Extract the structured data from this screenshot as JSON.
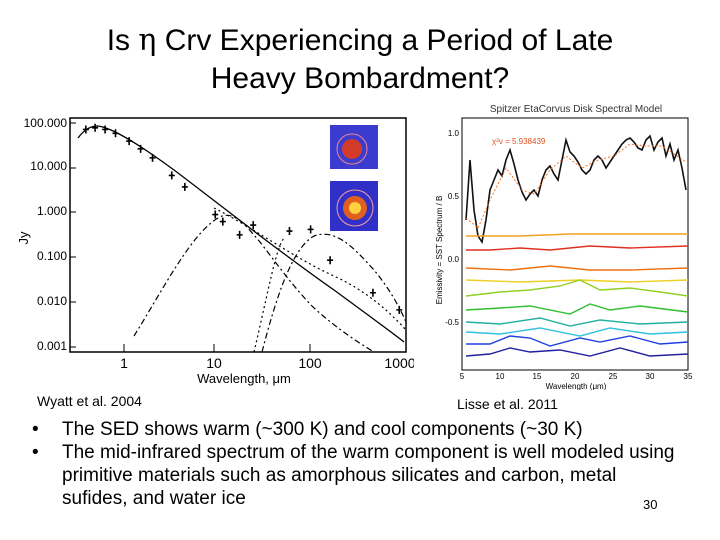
{
  "slide": {
    "title_line1_pre": "Is ",
    "title_eta": "η",
    "title_line1_post": " Crv Experiencing a Period of Late",
    "title_line2": "Heavy Bombardment?",
    "slide_number": "30"
  },
  "figures": {
    "left_caption": "Wyatt et al. 2004",
    "right_caption": "Lisse et al. 2011"
  },
  "bullets": [
    "The SED shows warm (~300 K) and cool components (~30 K)",
    "The mid-infrared spectrum of the warm component is well modeled using primitive materials such as amorphous silicates and carbon, metal sufides, and water ice"
  ],
  "chart_data": [
    {
      "type": "scatter",
      "xlabel": "Wavelength, μm",
      "ylabel": "Jy",
      "x_scale": "log",
      "y_scale": "log",
      "xlim": [
        0.3,
        1000
      ],
      "ylim": [
        0.001,
        200
      ],
      "x_ticks": [
        "1",
        "10",
        "100",
        "1000"
      ],
      "y_ticks": [
        "100.000",
        "10.000",
        "1.000",
        "0.100",
        "0.010",
        "0.001"
      ],
      "series": [
        {
          "x": [
            0.44,
            0.55,
            0.7,
            0.9,
            1.25,
            1.65,
            2.2,
            3.5,
            4.8,
            10,
            12,
            18,
            25,
            60,
            100,
            160,
            450,
            850
          ],
          "y": [
            110,
            120,
            110,
            90,
            60,
            40,
            25,
            10,
            5.5,
            1.3,
            0.9,
            0.45,
            0.75,
            0.55,
            0.6,
            0.12,
            0.022,
            0.009
          ]
        }
      ]
    },
    {
      "type": "line",
      "title": "Spitzer EtaCorvus Disk Spectral Model",
      "xlabel": "Wavelength (μm)",
      "ylabel": "Emissivity = SST Spectrum / B",
      "xlim": [
        5,
        35
      ],
      "ylim": [
        -1,
        1
      ],
      "x_ticks": [
        "5",
        "10",
        "15",
        "20",
        "25",
        "30",
        "35"
      ],
      "y_ticks": [
        "1.0",
        "0.5",
        "0.0",
        "-0.5"
      ],
      "annotations": [
        "χ²ν = 5.938439"
      ]
    }
  ]
}
